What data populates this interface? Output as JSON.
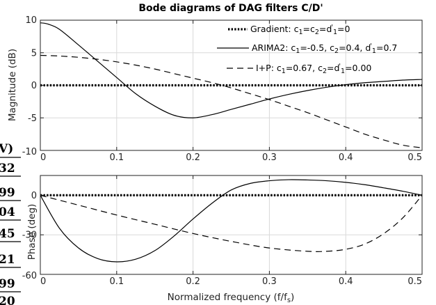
{
  "chart_data": [
    {
      "type": "line",
      "title": "Bode diagrams of DAG filters C/D'",
      "xlabel": "",
      "ylabel": "Magnitude (dB)",
      "xlim": [
        0,
        0.5
      ],
      "ylim": [
        -10,
        10
      ],
      "xticks": [
        "0",
        "0.1",
        "0.2",
        "0.3",
        "0.4",
        "0.5"
      ],
      "yticks": [
        "10",
        "5",
        "0",
        "-5",
        "-10"
      ],
      "grid": true,
      "legend_position": "top-right",
      "legend": [
        {
          "label": "Gradient: c",
          "parts": [
            [
              "Gradient: c",
              ""
            ],
            [
              "1",
              "sub"
            ],
            [
              "=c",
              ""
            ],
            [
              "2",
              "sub"
            ],
            [
              "=d",
              ""
            ],
            [
              "'",
              "sup"
            ],
            [
              "1",
              "sub"
            ],
            [
              "=0",
              ""
            ]
          ],
          "style": "dotted"
        },
        {
          "label": "ARIMA2: c",
          "parts": [
            [
              "ARIMA2: c",
              ""
            ],
            [
              "1",
              "sub"
            ],
            [
              "=-0.5, c",
              ""
            ],
            [
              "2",
              "sub"
            ],
            [
              "=0.4, d",
              ""
            ],
            [
              "'",
              "sup"
            ],
            [
              "1",
              "sub"
            ],
            [
              "=0.7",
              ""
            ]
          ],
          "style": "solid"
        },
        {
          "label": "I+P: c",
          "parts": [
            [
              "I+P: c",
              ""
            ],
            [
              "1",
              "sub"
            ],
            [
              "=0.67, c",
              ""
            ],
            [
              "2",
              "sub"
            ],
            [
              "=d",
              ""
            ],
            [
              "'",
              "sup"
            ],
            [
              "1",
              "sub"
            ],
            [
              "=0.00",
              ""
            ]
          ],
          "style": "dashed"
        }
      ],
      "series": [
        {
          "style": "dotted",
          "x": [
            0,
            0.05,
            0.1,
            0.15,
            0.2,
            0.25,
            0.3,
            0.35,
            0.4,
            0.45,
            0.5
          ],
          "y": [
            0,
            0,
            0,
            0,
            0,
            0,
            0,
            0,
            0,
            0,
            0
          ]
        },
        {
          "style": "solid",
          "x": [
            0,
            0.01,
            0.025,
            0.05,
            0.075,
            0.1,
            0.125,
            0.15,
            0.175,
            0.2,
            0.225,
            0.25,
            0.275,
            0.3,
            0.325,
            0.35,
            0.375,
            0.4,
            0.425,
            0.45,
            0.475,
            0.5
          ],
          "y": [
            9.6,
            9.4,
            8.6,
            6.2,
            3.7,
            1.2,
            -1.3,
            -3.2,
            -4.6,
            -5.0,
            -4.5,
            -3.7,
            -2.9,
            -2.1,
            -1.4,
            -0.8,
            -0.3,
            0.1,
            0.4,
            0.6,
            0.8,
            0.9
          ]
        },
        {
          "style": "dashed",
          "x": [
            0,
            0.025,
            0.05,
            0.075,
            0.1,
            0.125,
            0.15,
            0.175,
            0.2,
            0.225,
            0.25,
            0.275,
            0.3,
            0.325,
            0.35,
            0.375,
            0.4,
            0.425,
            0.45,
            0.475,
            0.5
          ],
          "y": [
            4.6,
            4.5,
            4.3,
            4.0,
            3.6,
            3.1,
            2.5,
            1.8,
            1.1,
            0.4,
            -0.4,
            -1.3,
            -2.2,
            -3.2,
            -4.2,
            -5.3,
            -6.4,
            -7.5,
            -8.4,
            -9.2,
            -9.6
          ]
        }
      ]
    },
    {
      "type": "line",
      "title": "",
      "xlabel": "Normalized frequency (f/f",
      "xlabel_sub": "s",
      "xlabel_end": ")",
      "ylabel": "Phase (deg)",
      "xlim": [
        0,
        0.5
      ],
      "ylim": [
        -60,
        15
      ],
      "xticks": [
        "0",
        "0.1",
        "0.2",
        "0.3",
        "0.4",
        "0.5"
      ],
      "yticks": [
        "0",
        "-30",
        "-60"
      ],
      "grid": true,
      "series": [
        {
          "style": "dotted",
          "x": [
            0,
            0.05,
            0.1,
            0.15,
            0.2,
            0.25,
            0.3,
            0.35,
            0.4,
            0.45,
            0.5
          ],
          "y": [
            0,
            0,
            0,
            0,
            0,
            0,
            0,
            0,
            0,
            0,
            0
          ]
        },
        {
          "style": "solid",
          "x": [
            0,
            0.025,
            0.05,
            0.075,
            0.1,
            0.125,
            0.15,
            0.175,
            0.2,
            0.225,
            0.25,
            0.275,
            0.3,
            0.325,
            0.35,
            0.375,
            0.4,
            0.425,
            0.45,
            0.475,
            0.5
          ],
          "y": [
            0,
            -25,
            -40,
            -48,
            -50.5,
            -48.5,
            -42,
            -31,
            -18,
            -6,
            4,
            9,
            11,
            11.8,
            11.6,
            11,
            9.8,
            8,
            5.6,
            3,
            0
          ]
        },
        {
          "style": "dashed",
          "x": [
            0,
            0.05,
            0.1,
            0.15,
            0.2,
            0.25,
            0.3,
            0.35,
            0.375,
            0.4,
            0.425,
            0.45,
            0.475,
            0.5
          ],
          "y": [
            0,
            -7.5,
            -15,
            -22,
            -29,
            -35,
            -40,
            -42.5,
            -42.5,
            -41,
            -37,
            -29,
            -17,
            0
          ]
        }
      ]
    }
  ],
  "cropped_margin_fragments": [
    "V)",
    "32",
    "99",
    "04",
    "45",
    "21",
    "99",
    "20"
  ]
}
